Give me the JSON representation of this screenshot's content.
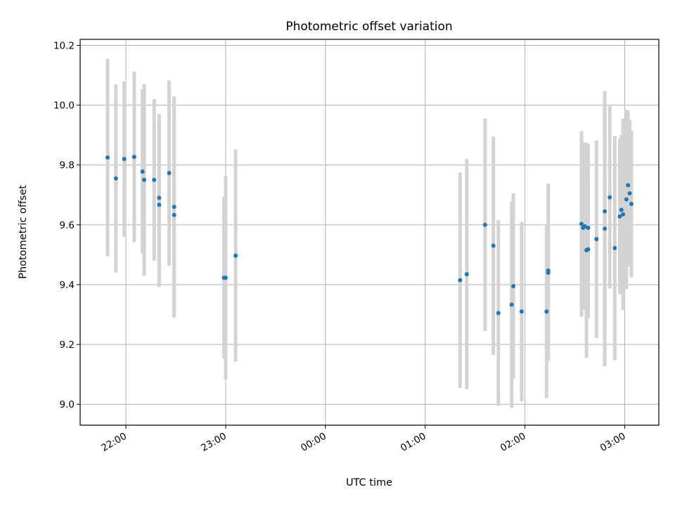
{
  "chart_data": {
    "type": "scatter",
    "title": "Photometric offset variation",
    "xlabel": "UTC time",
    "ylabel": "Photometric offset",
    "x_tick_labels": [
      "22:00",
      "23:00",
      "00:00",
      "01:00",
      "02:00",
      "03:00"
    ],
    "x_tick_minutes": [
      1320,
      1380,
      1440,
      1500,
      1560,
      1620
    ],
    "xlim_minutes": [
      1292.5,
      1640.5
    ],
    "y_ticks": [
      9.0,
      9.2,
      9.4,
      9.6,
      9.8,
      10.0,
      10.2
    ],
    "y_tick_labels": [
      "9.0",
      "9.2",
      "9.4",
      "9.6",
      "9.8",
      "10.0",
      "10.2"
    ],
    "ylim": [
      8.93,
      10.22
    ],
    "grid": true,
    "marker_color": "#1f77b4",
    "errorbar_color": "#d3d3d3",
    "series": [
      {
        "x": [
          "21:49",
          "21:54",
          "21:59",
          "22:05",
          "22:10",
          "22:11",
          "22:17",
          "22:20",
          "22:20",
          "22:26",
          "22:29",
          "22:29",
          "22:59",
          "23:00",
          "23:06",
          "01:21",
          "01:25",
          "01:36",
          "01:41",
          "01:44",
          "01:52",
          "01:53",
          "01:58",
          "02:13",
          "02:14",
          "02:14",
          "02:34",
          "02:35",
          "02:36",
          "02:37",
          "02:38",
          "02:38",
          "02:43",
          "02:48",
          "02:48",
          "02:51",
          "02:54",
          "02:57",
          "02:58",
          "02:59",
          "03:01",
          "03:02",
          "03:03",
          "03:04"
        ],
        "y": [
          9.825,
          9.755,
          9.82,
          9.827,
          9.778,
          9.75,
          9.75,
          9.69,
          9.667,
          9.773,
          9.633,
          9.66,
          9.423,
          9.423,
          9.497,
          9.415,
          9.435,
          9.6,
          9.53,
          9.305,
          9.333,
          9.395,
          9.31,
          9.31,
          9.44,
          9.447,
          9.603,
          9.59,
          9.595,
          9.515,
          9.518,
          9.59,
          9.552,
          9.645,
          9.587,
          9.692,
          9.522,
          9.628,
          9.65,
          9.635,
          9.685,
          9.732,
          9.705,
          9.67
        ],
        "yerr": [
          0.33,
          0.315,
          0.26,
          0.285,
          0.275,
          0.32,
          0.27,
          0.28,
          0.275,
          0.31,
          0.335,
          0.37,
          0.27,
          0.34,
          0.355,
          0.36,
          0.385,
          0.355,
          0.365,
          0.31,
          0.345,
          0.31,
          0.3,
          0.29,
          0.295,
          0.29,
          0.31,
          0.275,
          0.28,
          0.36,
          0.23,
          0.28,
          0.33,
          0.385,
          0.46,
          0.305,
          0.375,
          0.26,
          0.25,
          0.32,
          0.3,
          0.25,
          0.245,
          0.245
        ]
      }
    ]
  }
}
